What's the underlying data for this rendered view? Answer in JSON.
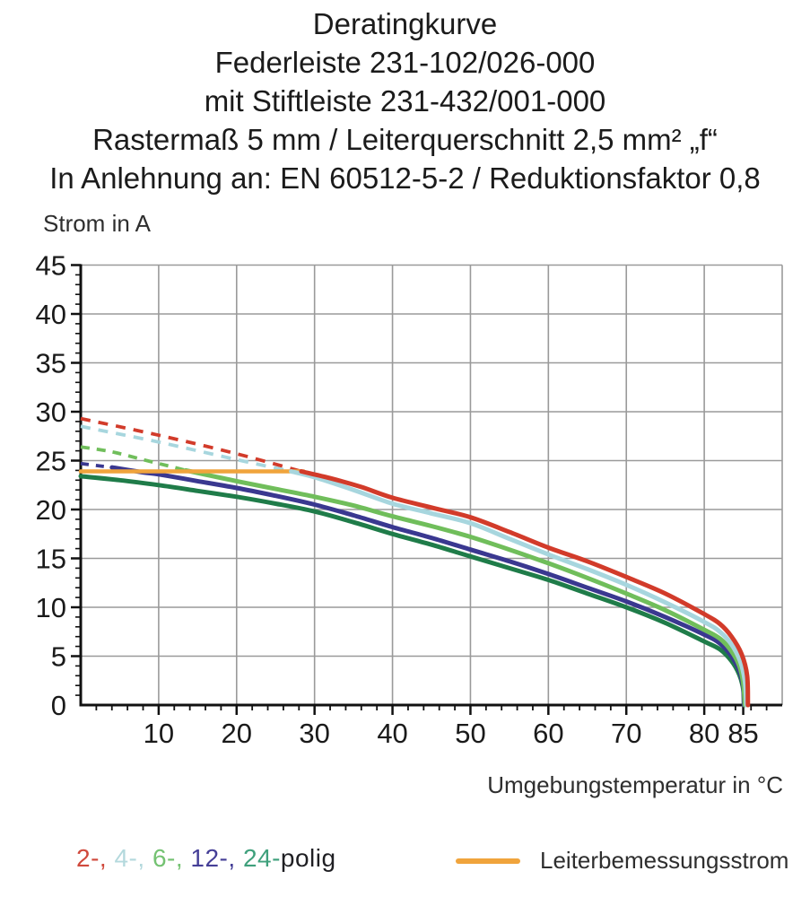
{
  "page": {
    "background": "#ffffff"
  },
  "title": {
    "lines": [
      "Deratingkurve",
      "Federleiste 231-102/026-000",
      "mit Stiftleiste 231-432/001-000",
      "Rastermaß 5 mm / Leiterquerschnitt 2,5 mm² „f“",
      "In Anlehnung an: EN 60512-5-2 / Reduktionsfaktor 0,8"
    ]
  },
  "axis": {
    "y_label": "Strom in A",
    "x_label": "Umgebungstemperatur in °C"
  },
  "legend": {
    "poles": [
      {
        "label": "2-, ",
        "color": "#d0493c"
      },
      {
        "label": "4-, ",
        "color": "#b4d9dd"
      },
      {
        "label": "6-, ",
        "color": "#74c272"
      },
      {
        "label": "12-, ",
        "color": "#453f97"
      },
      {
        "label": "24-",
        "color": "#3fa07c"
      }
    ],
    "suffix": "polig",
    "rated": {
      "label": "Leiterbemessungsstrom",
      "color": "#f0a43c"
    }
  },
  "chart_data": {
    "type": "line",
    "title": "Deratingkurve",
    "xlabel": "Umgebungstemperatur in °C",
    "ylabel": "Strom in A",
    "xlim": [
      0,
      90
    ],
    "ylim": [
      0,
      45
    ],
    "x_tick_labels": [
      10,
      20,
      30,
      40,
      50,
      60,
      70,
      80,
      85
    ],
    "y_tick_labels": [
      0,
      5,
      10,
      15,
      20,
      25,
      30,
      35,
      40,
      45
    ],
    "x_minor_step": 2,
    "y_minor_step": 1,
    "grid": true,
    "grid_color": "#9a9a9a",
    "axis_color": "#111111",
    "legend_position": "bottom",
    "rated_line": {
      "name": "Leiterbemessungsstrom",
      "color": "#f0a43c",
      "value": 23.9,
      "x_range": [
        0,
        28.6
      ],
      "width": 4.5
    },
    "series": [
      {
        "name": "2-polig",
        "color": "#d23b2a",
        "dash_pattern": "11 9",
        "dash": [
          [
            0,
            29.3
          ],
          [
            10,
            27.6
          ],
          [
            20,
            25.7
          ],
          [
            28.3,
            23.9
          ]
        ],
        "solid": [
          [
            28.3,
            23.9
          ],
          [
            32,
            23.2
          ],
          [
            36,
            22.3
          ],
          [
            40,
            21.2
          ],
          [
            45,
            20.2
          ],
          [
            50,
            19.2
          ],
          [
            55,
            17.7
          ],
          [
            60,
            16.1
          ],
          [
            65,
            14.7
          ],
          [
            70,
            13.1
          ],
          [
            75,
            11.4
          ],
          [
            80,
            9.3
          ],
          [
            82,
            8.3
          ],
          [
            83.5,
            7.0
          ],
          [
            84.8,
            5.2
          ],
          [
            85.5,
            3.0
          ],
          [
            85.6,
            0
          ]
        ]
      },
      {
        "name": "4-polig",
        "color": "#a7d6de",
        "dash_pattern": "11 9",
        "dash": [
          [
            0,
            28.5
          ],
          [
            10,
            26.9
          ],
          [
            20,
            25.1
          ],
          [
            27,
            23.9
          ]
        ],
        "solid": [
          [
            27,
            23.9
          ],
          [
            30,
            23.3
          ],
          [
            35,
            22.0
          ],
          [
            40,
            20.6
          ],
          [
            45,
            19.6
          ],
          [
            50,
            18.6
          ],
          [
            55,
            17.0
          ],
          [
            60,
            15.4
          ],
          [
            65,
            13.9
          ],
          [
            70,
            12.3
          ],
          [
            75,
            10.5
          ],
          [
            80,
            8.5
          ],
          [
            82,
            7.5
          ],
          [
            83.5,
            6.2
          ],
          [
            84.6,
            4.5
          ],
          [
            85.2,
            2.5
          ],
          [
            85.4,
            0
          ]
        ]
      },
      {
        "name": "6-polig",
        "color": "#70be5b",
        "dash_pattern": "10 8",
        "dash": [
          [
            0,
            26.4
          ],
          [
            4,
            25.9
          ],
          [
            8,
            25.1
          ],
          [
            11,
            24.5
          ],
          [
            13.5,
            24.0
          ]
        ],
        "solid": [
          [
            13.5,
            24.0
          ],
          [
            17,
            23.4
          ],
          [
            20,
            22.9
          ],
          [
            25,
            22.1
          ],
          [
            30,
            21.3
          ],
          [
            35,
            20.4
          ],
          [
            40,
            19.3
          ],
          [
            45,
            18.3
          ],
          [
            50,
            17.2
          ],
          [
            55,
            15.9
          ],
          [
            60,
            14.5
          ],
          [
            65,
            13.0
          ],
          [
            70,
            11.4
          ],
          [
            75,
            9.7
          ],
          [
            80,
            7.7
          ],
          [
            82,
            6.8
          ],
          [
            83.5,
            5.5
          ],
          [
            84.5,
            4.0
          ],
          [
            85,
            2.2
          ],
          [
            85.2,
            0
          ]
        ]
      },
      {
        "name": "12-polig",
        "color": "#3a3890",
        "dash_pattern": "9 8",
        "dash": [
          [
            0,
            24.7
          ],
          [
            4,
            24.3
          ]
        ],
        "solid": [
          [
            4,
            24.3
          ],
          [
            8,
            23.8
          ],
          [
            10,
            23.6
          ],
          [
            15,
            22.9
          ],
          [
            20,
            22.2
          ],
          [
            25,
            21.4
          ],
          [
            30,
            20.5
          ],
          [
            35,
            19.4
          ],
          [
            40,
            18.2
          ],
          [
            45,
            17.1
          ],
          [
            50,
            15.9
          ],
          [
            55,
            14.7
          ],
          [
            60,
            13.4
          ],
          [
            65,
            12.0
          ],
          [
            70,
            10.6
          ],
          [
            75,
            9.0
          ],
          [
            80,
            7.2
          ],
          [
            82,
            6.3
          ],
          [
            83.5,
            5.0
          ],
          [
            84.5,
            3.5
          ],
          [
            85,
            1.8
          ],
          [
            85.1,
            0
          ]
        ]
      },
      {
        "name": "24-polig",
        "color": "#1f7c49",
        "dash_pattern": null,
        "dash": [],
        "solid": [
          [
            0,
            23.4
          ],
          [
            5,
            23.0
          ],
          [
            10,
            22.5
          ],
          [
            15,
            21.9
          ],
          [
            20,
            21.3
          ],
          [
            25,
            20.6
          ],
          [
            30,
            19.8
          ],
          [
            35,
            18.7
          ],
          [
            40,
            17.5
          ],
          [
            45,
            16.4
          ],
          [
            50,
            15.2
          ],
          [
            55,
            14.0
          ],
          [
            60,
            12.8
          ],
          [
            65,
            11.4
          ],
          [
            70,
            10.0
          ],
          [
            75,
            8.4
          ],
          [
            80,
            6.5
          ],
          [
            82,
            5.7
          ],
          [
            83.5,
            4.5
          ],
          [
            84.5,
            3.1
          ],
          [
            85,
            1.6
          ],
          [
            85.1,
            0
          ]
        ]
      }
    ]
  }
}
